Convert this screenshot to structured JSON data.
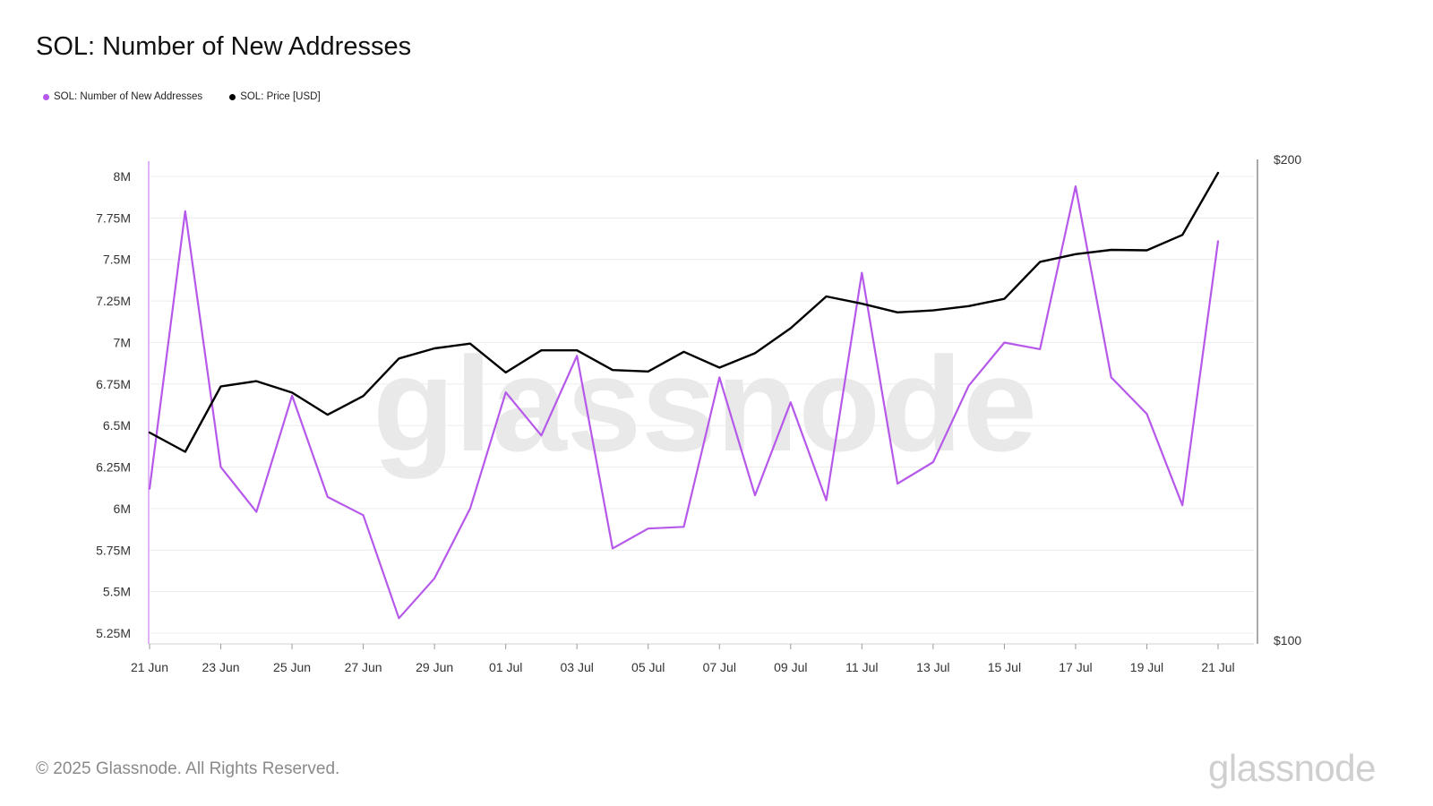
{
  "title": "SOL: Number of New Addresses",
  "legend": [
    {
      "label": "SOL: Number of New Addresses",
      "color": "#b659ea"
    },
    {
      "label": "SOL: Price [USD]",
      "color": "#000000"
    }
  ],
  "watermark": "glassnode",
  "footer": {
    "copyright": "© 2025 Glassnode. All Rights Reserved.",
    "logo": "glassnode"
  },
  "chart_data": {
    "type": "line",
    "x": [
      "21 Jun",
      "22 Jun",
      "23 Jun",
      "24 Jun",
      "25 Jun",
      "26 Jun",
      "27 Jun",
      "28 Jun",
      "29 Jun",
      "30 Jun",
      "01 Jul",
      "02 Jul",
      "03 Jul",
      "04 Jul",
      "05 Jul",
      "06 Jul",
      "07 Jul",
      "08 Jul",
      "09 Jul",
      "10 Jul",
      "11 Jul",
      "12 Jul",
      "13 Jul",
      "14 Jul",
      "15 Jul",
      "16 Jul",
      "17 Jul",
      "18 Jul",
      "19 Jul",
      "20 Jul",
      "21 Jul"
    ],
    "x_tick_labels": [
      "21 Jun",
      "23 Jun",
      "25 Jun",
      "27 Jun",
      "29 Jun",
      "01 Jul",
      "03 Jul",
      "05 Jul",
      "07 Jul",
      "09 Jul",
      "11 Jul",
      "13 Jul",
      "15 Jul",
      "17 Jul",
      "19 Jul",
      "21 Jul"
    ],
    "series": [
      {
        "name": "SOL: Number of New Addresses",
        "axis": "left",
        "color": "#b659ea",
        "values": [
          6.12,
          7.79,
          6.25,
          5.98,
          6.68,
          6.07,
          5.96,
          5.34,
          5.58,
          6.0,
          6.7,
          6.44,
          6.92,
          5.76,
          5.88,
          5.89,
          6.79,
          6.08,
          6.64,
          6.05,
          7.42,
          6.15,
          6.28,
          6.74,
          7.0,
          6.96,
          7.94,
          6.79,
          6.57,
          6.02,
          7.61
        ]
      },
      {
        "name": "SOL: Price [USD]",
        "axis": "right",
        "color": "#000000",
        "values": [
          143.2,
          139.2,
          152.8,
          153.9,
          151.5,
          146.9,
          150.8,
          158.6,
          160.7,
          161.7,
          155.7,
          160.3,
          160.3,
          156.2,
          155.9,
          160.0,
          156.7,
          159.7,
          164.9,
          171.5,
          170.0,
          168.2,
          168.6,
          169.5,
          171.0,
          178.7,
          180.3,
          181.2,
          181.1,
          184.3,
          197.2
        ]
      }
    ],
    "y_left": {
      "ticks": [
        "5.25M",
        "5.5M",
        "5.75M",
        "6M",
        "6.25M",
        "6.5M",
        "6.75M",
        "7M",
        "7.25M",
        "7.5M",
        "7.75M",
        "8M"
      ],
      "ylim": [
        5.2,
        8.1
      ],
      "unit": "M"
    },
    "y_right": {
      "ticks": [
        "$100",
        "$200"
      ],
      "ylim": [
        100,
        200
      ]
    },
    "grid": true,
    "legend_position": "top-left"
  }
}
